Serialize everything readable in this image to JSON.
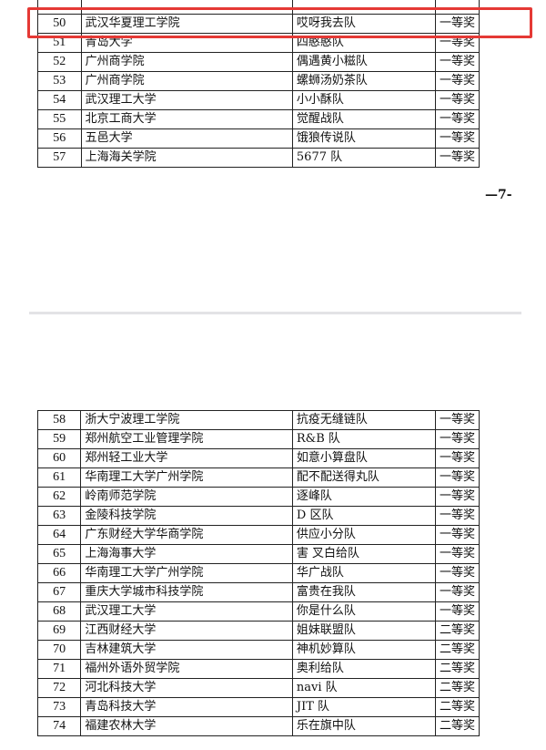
{
  "page_top": {
    "rows": [
      {
        "no": "",
        "school": "",
        "team": "",
        "award": ""
      },
      {
        "no": "50",
        "school": "武汉华夏理工学院",
        "team": "哎呀我去队",
        "award": "一等奖"
      },
      {
        "no": "51",
        "school": "青岛大学",
        "team": "四憨憨队",
        "award": "一等奖"
      },
      {
        "no": "52",
        "school": "广州商学院",
        "team": "偶遇黄小糍队",
        "award": "一等奖"
      },
      {
        "no": "53",
        "school": "广州商学院",
        "team": "螺蛳汤奶茶队",
        "award": "一等奖"
      },
      {
        "no": "54",
        "school": "武汉理工大学",
        "team": "小小酥队",
        "award": "一等奖"
      },
      {
        "no": "55",
        "school": "北京工商大学",
        "team": "觉醒战队",
        "award": "一等奖"
      },
      {
        "no": "56",
        "school": "五邑大学",
        "team": "饿狼传说队",
        "award": "一等奖"
      },
      {
        "no": "57",
        "school": "上海海关学院",
        "team": "5677 队",
        "award": "一等奖"
      }
    ],
    "page_number": "—7-"
  },
  "page_bottom": {
    "rows": [
      {
        "no": "58",
        "school": "浙大宁波理工学院",
        "team": "抗疫无缝链队",
        "award": "一等奖"
      },
      {
        "no": "59",
        "school": "郑州航空工业管理学院",
        "team": "R&B 队",
        "award": "一等奖"
      },
      {
        "no": "60",
        "school": "郑州轻工业大学",
        "team": "如意小算盘队",
        "award": "一等奖"
      },
      {
        "no": "61",
        "school": "华南理工大学广州学院",
        "team": "配不配送得丸队",
        "award": "一等奖"
      },
      {
        "no": "62",
        "school": "岭南师范学院",
        "team": "逐峰队",
        "award": "一等奖"
      },
      {
        "no": "63",
        "school": "金陵科技学院",
        "team": "D 区队",
        "award": "一等奖"
      },
      {
        "no": "64",
        "school": "广东财经大学华商学院",
        "team": "供应小分队",
        "award": "一等奖"
      },
      {
        "no": "65",
        "school": "上海海事大学",
        "team": "害 叉白给队",
        "award": "一等奖"
      },
      {
        "no": "66",
        "school": "华南理工大学广州学院",
        "team": "华广战队",
        "award": "一等奖"
      },
      {
        "no": "67",
        "school": "重庆大学城市科技学院",
        "team": "富贵在我队",
        "award": "一等奖"
      },
      {
        "no": "68",
        "school": "武汉理工大学",
        "team": "你是什么队",
        "award": "一等奖"
      },
      {
        "no": "69",
        "school": "江西财经大学",
        "team": "姐妹联盟队",
        "award": "二等奖"
      },
      {
        "no": "70",
        "school": "吉林建筑大学",
        "team": "神机妙算队",
        "award": "二等奖"
      },
      {
        "no": "71",
        "school": "福州外语外贸学院",
        "team": "奥利给队",
        "award": "二等奖"
      },
      {
        "no": "72",
        "school": "河北科技大学",
        "team": "navi 队",
        "award": "二等奖"
      },
      {
        "no": "73",
        "school": "青岛科技大学",
        "team": "JIT 队",
        "award": "二等奖"
      },
      {
        "no": "74",
        "school": "福建农林大学",
        "team": "乐在旗中队",
        "award": "二等奖"
      }
    ]
  },
  "highlight": {
    "color": "#e53935",
    "row": "50"
  }
}
